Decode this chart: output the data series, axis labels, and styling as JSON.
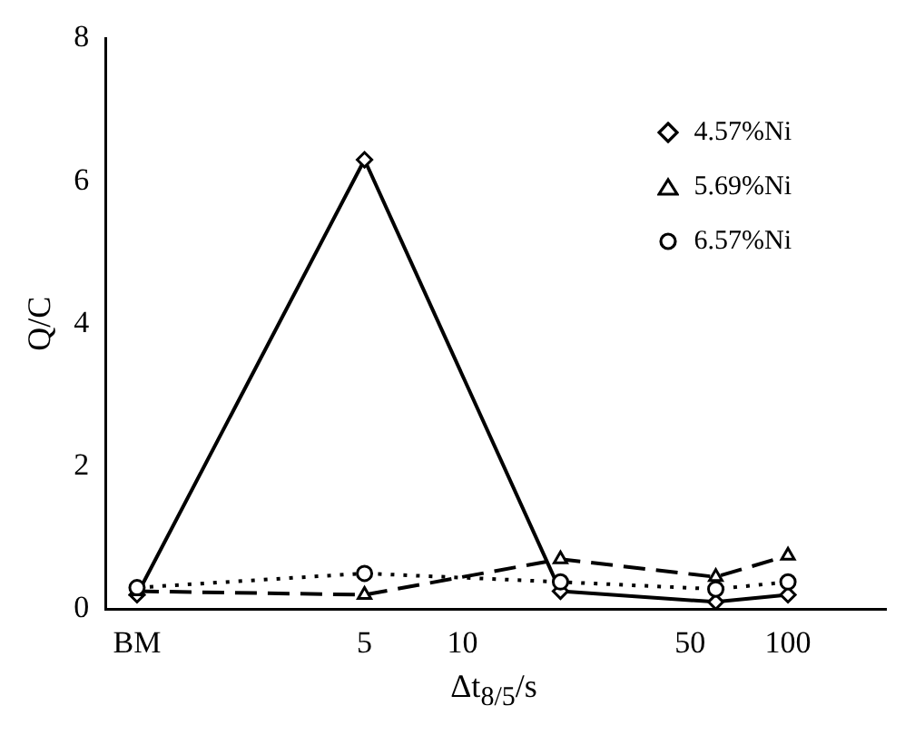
{
  "chart_data": {
    "type": "line",
    "xlabel": "Δt$_{8/5}$/s",
    "ylabel": "Q/C",
    "log": "x",
    "xlim": [
      0.8,
      200
    ],
    "xticks": [
      {
        "value": 1,
        "label": "BM"
      },
      5,
      10,
      50,
      100
    ],
    "ylim": [
      0,
      8
    ],
    "yticks": [
      0,
      2,
      4,
      6,
      8
    ],
    "grid": false,
    "legend": "top right",
    "series": [
      {
        "name": "4.57%Ni",
        "color": "#000000",
        "marker": "diamond",
        "line_style": "solid",
        "x": [
          1,
          5,
          20,
          60,
          100
        ],
        "values": [
          0.2,
          6.3,
          0.25,
          0.1,
          0.2
        ]
      },
      {
        "name": "5.69%Ni",
        "color": "#000000",
        "marker": "triangle",
        "line_style": "dashed",
        "x": [
          1,
          5,
          20,
          60,
          100
        ],
        "values": [
          0.25,
          0.2,
          0.7,
          0.45,
          0.75
        ]
      },
      {
        "name": "6.57%Ni",
        "color": "#000000",
        "marker": "circle",
        "line_style": "dotted",
        "x": [
          1,
          5,
          20,
          60,
          100
        ],
        "values": [
          0.3,
          0.5,
          0.38,
          0.28,
          0.38
        ]
      }
    ]
  }
}
